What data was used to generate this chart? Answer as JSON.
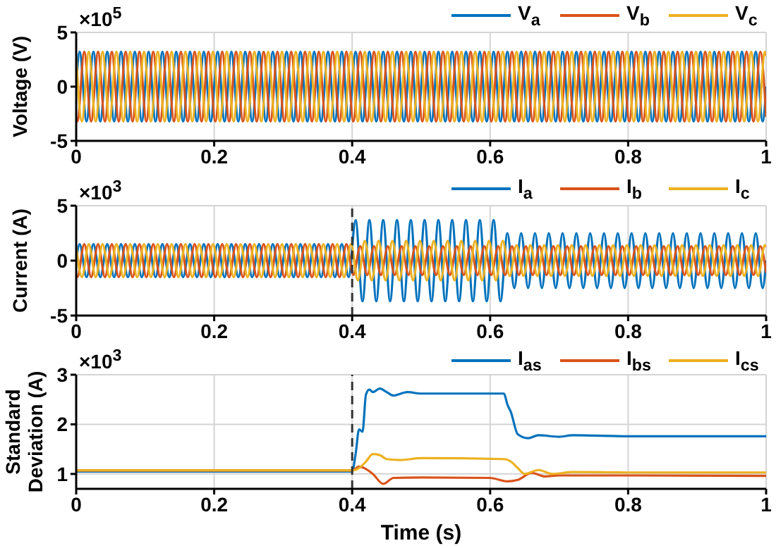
{
  "chart_data": [
    {
      "type": "line",
      "ylabel": "Voltage (V)",
      "annotations": [
        "×10$^{5}$"
      ],
      "xlim": [
        0,
        1
      ],
      "xticks": [
        0,
        0.2,
        0.4,
        0.6,
        0.8,
        1
      ],
      "ylim": [
        -5,
        5
      ],
      "yticks": [
        -5,
        0,
        5
      ],
      "grid": true,
      "legend": "top right",
      "series": [
        {
          "name": "V$_{a}$",
          "color": "#0072bd",
          "x": [
            0,
            0.005,
            0.015,
            0.025,
            0.035,
            0.045,
            0.055,
            0.065,
            0.075,
            0.085,
            0.095,
            0.105,
            0.115,
            0.125,
            0.135,
            0.145,
            0.155,
            0.165,
            0.175,
            0.185,
            0.195,
            0.205,
            0.215,
            0.225,
            0.235,
            0.245,
            0.255,
            0.265,
            0.275,
            0.285,
            0.295,
            0.305,
            0.315,
            0.325,
            0.335,
            0.345,
            0.355,
            0.365,
            0.375,
            0.385,
            0.395,
            0.405,
            0.415,
            0.425,
            0.435,
            0.445,
            0.455,
            0.465,
            0.475,
            0.485,
            0.495,
            0.505,
            0.515,
            0.525,
            0.535,
            0.545,
            0.555,
            0.565,
            0.575,
            0.585,
            0.595,
            0.605,
            0.615,
            0.625,
            0.635,
            0.645,
            0.655,
            0.665,
            0.675,
            0.685,
            0.695,
            0.705,
            0.715,
            0.725,
            0.735,
            0.745,
            0.755,
            0.765,
            0.775,
            0.785,
            0.795,
            0.805,
            0.815,
            0.825,
            0.835,
            0.845,
            0.855,
            0.865,
            0.875,
            0.885,
            0.895,
            0.905,
            0.915,
            0.925,
            0.935,
            0.945,
            0.955,
            0.965,
            0.975,
            0.985,
            0.995,
            1
          ],
          "values": [
            0,
            3.2,
            -3.2,
            3.2,
            -3.2,
            3.2,
            -3.2,
            3.2,
            -3.2,
            3.2,
            -3.2,
            3.2,
            -3.2,
            3.2,
            -3.2,
            3.2,
            -3.2,
            3.2,
            -3.2,
            3.2,
            -3.2,
            3.2,
            -3.2,
            3.2,
            -3.2,
            3.2,
            -3.2,
            3.2,
            -3.2,
            3.2,
            -3.2,
            3.2,
            -3.2,
            3.2,
            -3.2,
            3.2,
            -3.2,
            3.2,
            -3.2,
            3.2,
            -3.2,
            3.2,
            -3.2,
            3.2,
            -3.2,
            3.2,
            -3.2,
            3.2,
            -3.2,
            3.2,
            -3.2,
            3.2,
            -3.2,
            3.2,
            -3.2,
            3.2,
            -3.2,
            3.2,
            -3.2,
            3.2,
            -3.2,
            3.2,
            -3.2,
            3.2,
            -3.2,
            3.2,
            -3.2,
            3.2,
            -3.2,
            3.2,
            -3.2,
            3.2,
            -3.2,
            3.2,
            -3.2,
            3.2,
            -3.2,
            3.2,
            -3.2,
            3.2,
            -3.2,
            3.2,
            -3.2,
            3.2,
            -3.2,
            3.2,
            -3.2,
            3.2,
            -3.2,
            3.2,
            -3.2,
            3.2,
            -3.2,
            3.2,
            -3.2,
            3.2,
            -3.2,
            3.2,
            -3.2,
            3.2,
            -3.2,
            0
          ]
        },
        {
          "name": "V$_{b}$",
          "color": "#d95319",
          "x": [
            0,
            0.0017,
            0.0117,
            0.0217,
            0.0317,
            0.0417,
            0.0517,
            0.0617,
            0.0717,
            0.0817,
            0.0917,
            0.1017,
            0.1117,
            0.1217,
            0.1317,
            0.1417,
            0.1517,
            0.1617,
            0.1717,
            0.1817,
            0.1917,
            0.2017,
            0.2117,
            0.2217,
            0.2317,
            0.2417,
            0.2517,
            0.2617,
            0.2717,
            0.2817,
            0.2917,
            0.3017,
            0.3117,
            0.3217,
            0.3317,
            0.3417,
            0.3517,
            0.3617,
            0.3717,
            0.3817,
            0.3917,
            0.4017,
            0.4117,
            0.4217,
            0.4317,
            0.4417,
            0.4517,
            0.4617,
            0.4717,
            0.4817,
            0.4917,
            0.5017,
            0.5117,
            0.5217,
            0.5317,
            0.5417,
            0.5517,
            0.5617,
            0.5717,
            0.5817,
            0.5917,
            0.6017,
            0.6117,
            0.6217,
            0.6317,
            0.6417,
            0.6517,
            0.6617,
            0.6717,
            0.6817,
            0.6917,
            0.7017,
            0.7117,
            0.7217,
            0.7317,
            0.7417,
            0.7517,
            0.7617,
            0.7717,
            0.7817,
            0.7917,
            0.8017,
            0.8117,
            0.8217,
            0.8317,
            0.8417,
            0.8517,
            0.8617,
            0.8717,
            0.8817,
            0.8917,
            0.9017,
            0.9117,
            0.9217,
            0.9317,
            0.9417,
            0.9517,
            0.9617,
            0.9717,
            0.9817,
            0.9917,
            1
          ],
          "values": [
            -2.8,
            -3.2,
            3.2,
            -3.2,
            3.2,
            -3.2,
            3.2,
            -3.2,
            3.2,
            -3.2,
            3.2,
            -3.2,
            3.2,
            -3.2,
            3.2,
            -3.2,
            3.2,
            -3.2,
            3.2,
            -3.2,
            3.2,
            -3.2,
            3.2,
            -3.2,
            3.2,
            -3.2,
            3.2,
            -3.2,
            3.2,
            -3.2,
            3.2,
            -3.2,
            3.2,
            -3.2,
            3.2,
            -3.2,
            3.2,
            -3.2,
            3.2,
            -3.2,
            3.2,
            -3.2,
            3.2,
            -3.2,
            3.2,
            -3.2,
            3.2,
            -3.2,
            3.2,
            -3.2,
            3.2,
            -3.2,
            3.2,
            -3.2,
            3.2,
            -3.2,
            3.2,
            -3.2,
            3.2,
            -3.2,
            3.2,
            -3.2,
            3.2,
            -3.2,
            3.2,
            -3.2,
            3.2,
            -3.2,
            3.2,
            -3.2,
            3.2,
            -3.2,
            3.2,
            -3.2,
            3.2,
            -3.2,
            3.2,
            -3.2,
            3.2,
            -3.2,
            3.2,
            -3.2,
            3.2,
            -3.2,
            3.2,
            -3.2,
            3.2,
            -3.2,
            3.2,
            -3.2,
            3.2,
            -3.2,
            3.2,
            -3.2,
            3.2,
            -3.2,
            3.2,
            -3.2,
            3.2,
            -3.2,
            3.2,
            -2.8
          ]
        },
        {
          "name": "V$_{c}$",
          "color": "#edb120",
          "x": [
            0,
            0.0083,
            0.0183,
            0.0283,
            0.0383,
            0.0483,
            0.0583,
            0.0683,
            0.0783,
            0.0883,
            0.0983,
            0.1083,
            0.1183,
            0.1283,
            0.1383,
            0.1483,
            0.1583,
            0.1683,
            0.1783,
            0.1883,
            0.1983,
            0.2083,
            0.2183,
            0.2283,
            0.2383,
            0.2483,
            0.2583,
            0.2683,
            0.2783,
            0.2883,
            0.2983,
            0.3083,
            0.3183,
            0.3283,
            0.3383,
            0.3483,
            0.3583,
            0.3683,
            0.3783,
            0.3883,
            0.3983,
            0.4083,
            0.4183,
            0.4283,
            0.4383,
            0.4483,
            0.4583,
            0.4683,
            0.4783,
            0.4883,
            0.4983,
            0.5083,
            0.5183,
            0.5283,
            0.5383,
            0.5483,
            0.5583,
            0.5683,
            0.5783,
            0.5883,
            0.5983,
            0.6083,
            0.6183,
            0.6283,
            0.6383,
            0.6483,
            0.6583,
            0.6683,
            0.6783,
            0.6883,
            0.6983,
            0.7083,
            0.7183,
            0.7283,
            0.7383,
            0.7483,
            0.7583,
            0.7683,
            0.7783,
            0.7883,
            0.7983,
            0.8083,
            0.8183,
            0.8283,
            0.8383,
            0.8483,
            0.8583,
            0.8683,
            0.8783,
            0.8883,
            0.8983,
            0.9083,
            0.9183,
            0.9283,
            0.9383,
            0.9483,
            0.9583,
            0.9683,
            0.9783,
            0.9883,
            0.9983,
            1
          ],
          "values": [
            2.8,
            -3.2,
            3.2,
            -3.2,
            3.2,
            -3.2,
            3.2,
            -3.2,
            3.2,
            -3.2,
            3.2,
            -3.2,
            3.2,
            -3.2,
            3.2,
            -3.2,
            3.2,
            -3.2,
            3.2,
            -3.2,
            3.2,
            -3.2,
            3.2,
            -3.2,
            3.2,
            -3.2,
            3.2,
            -3.2,
            3.2,
            -3.2,
            3.2,
            -3.2,
            3.2,
            -3.2,
            3.2,
            -3.2,
            3.2,
            -3.2,
            3.2,
            -3.2,
            3.2,
            -3.2,
            3.2,
            -3.2,
            3.2,
            -3.2,
            3.2,
            -3.2,
            3.2,
            -3.2,
            3.2,
            -3.2,
            3.2,
            -3.2,
            3.2,
            -3.2,
            3.2,
            -3.2,
            3.2,
            -3.2,
            3.2,
            -3.2,
            3.2,
            -3.2,
            3.2,
            -3.2,
            3.2,
            -3.2,
            3.2,
            -3.2,
            3.2,
            -3.2,
            3.2,
            -3.2,
            3.2,
            -3.2,
            3.2,
            -3.2,
            3.2,
            -3.2,
            3.2,
            -3.2,
            3.2,
            -3.2,
            3.2,
            -3.2,
            3.2,
            -3.2,
            3.2,
            -3.2,
            3.2,
            -3.2,
            3.2,
            -3.2,
            3.2,
            -3.2,
            3.2,
            -3.2,
            3.2,
            -3.2,
            3.2,
            2.8
          ]
        }
      ]
    },
    {
      "type": "line",
      "ylabel": "Current (A)",
      "annotations": [
        "×10$^{3}$"
      ],
      "xlim": [
        0,
        1
      ],
      "xticks": [
        0,
        0.2,
        0.4,
        0.6,
        0.8,
        1
      ],
      "ylim": [
        -5,
        5
      ],
      "yticks": [
        -5,
        0,
        5
      ],
      "grid": true,
      "legend": "top right",
      "ref_lines": [
        {
          "axis": "x",
          "value": 0.4,
          "line_style": "dashed"
        }
      ],
      "series": [
        {
          "name": "I$_{a}$",
          "color": "#0072bd",
          "x": [
            0,
            0.005,
            0.015,
            0.025,
            0.035,
            0.045,
            0.055,
            0.065,
            0.075,
            0.085,
            0.095,
            0.105,
            0.115,
            0.125,
            0.135,
            0.145,
            0.155,
            0.165,
            0.175,
            0.185,
            0.195,
            0.205,
            0.215,
            0.225,
            0.235,
            0.245,
            0.255,
            0.265,
            0.275,
            0.285,
            0.295,
            0.305,
            0.315,
            0.325,
            0.335,
            0.345,
            0.355,
            0.365,
            0.375,
            0.385,
            0.395,
            0.405,
            0.415,
            0.425,
            0.435,
            0.445,
            0.455,
            0.465,
            0.475,
            0.485,
            0.495,
            0.505,
            0.515,
            0.525,
            0.535,
            0.545,
            0.555,
            0.565,
            0.575,
            0.585,
            0.595,
            0.605,
            0.615,
            0.625,
            0.635,
            0.645,
            0.655,
            0.665,
            0.675,
            0.685,
            0.695,
            0.705,
            0.715,
            0.725,
            0.735,
            0.745,
            0.755,
            0.765,
            0.775,
            0.785,
            0.795,
            0.805,
            0.815,
            0.825,
            0.835,
            0.845,
            0.855,
            0.865,
            0.875,
            0.885,
            0.895,
            0.905,
            0.915,
            0.925,
            0.935,
            0.945,
            0.955,
            0.965,
            0.975,
            0.985,
            0.995,
            1
          ],
          "values": [
            0,
            1.5,
            -1.5,
            1.5,
            -1.5,
            1.5,
            -1.5,
            1.5,
            -1.5,
            1.5,
            -1.5,
            1.5,
            -1.5,
            1.5,
            -1.5,
            1.5,
            -1.5,
            1.5,
            -1.5,
            1.5,
            -1.5,
            1.5,
            -1.5,
            1.5,
            -1.5,
            1.5,
            -1.5,
            1.5,
            -1.5,
            1.5,
            -1.5,
            1.5,
            -1.5,
            1.5,
            -1.5,
            1.5,
            -1.5,
            1.5,
            -1.5,
            1.5,
            -1.5,
            3.7,
            -3.7,
            3.7,
            -3.7,
            3.7,
            -3.7,
            3.7,
            -3.7,
            3.7,
            -3.7,
            3.7,
            -3.7,
            3.7,
            -3.7,
            3.7,
            -3.7,
            3.7,
            -3.7,
            3.7,
            -3.7,
            3.7,
            -3.7,
            2.5,
            -2.5,
            2.5,
            -2.5,
            2.5,
            -2.5,
            2.5,
            -2.5,
            2.5,
            -2.5,
            2.5,
            -2.5,
            2.5,
            -2.5,
            2.5,
            -2.5,
            2.5,
            -2.5,
            2.5,
            -2.5,
            2.5,
            -2.5,
            2.5,
            -2.5,
            2.5,
            -2.5,
            2.5,
            -2.5,
            2.5,
            -2.5,
            2.5,
            -2.5,
            2.5,
            -2.5,
            2.5,
            -2.5,
            2.5,
            -2.5,
            0
          ]
        },
        {
          "name": "I$_{b}$",
          "color": "#d95319",
          "x": [
            0,
            0.0017,
            0.0117,
            0.0217,
            0.0317,
            0.0417,
            0.0517,
            0.0617,
            0.0717,
            0.0817,
            0.0917,
            0.1017,
            0.1117,
            0.1217,
            0.1317,
            0.1417,
            0.1517,
            0.1617,
            0.1717,
            0.1817,
            0.1917,
            0.2017,
            0.2117,
            0.2217,
            0.2317,
            0.2417,
            0.2517,
            0.2617,
            0.2717,
            0.2817,
            0.2917,
            0.3017,
            0.3117,
            0.3217,
            0.3317,
            0.3417,
            0.3517,
            0.3617,
            0.3717,
            0.3817,
            0.3917,
            0.4017,
            0.4117,
            0.4217,
            0.4317,
            0.4417,
            0.4517,
            0.4617,
            0.4717,
            0.4817,
            0.4917,
            0.5017,
            0.5117,
            0.5217,
            0.5317,
            0.5417,
            0.5517,
            0.5617,
            0.5717,
            0.5817,
            0.5917,
            0.6017,
            0.6117,
            0.6217,
            0.6317,
            0.6417,
            0.6517,
            0.6617,
            0.6717,
            0.6817,
            0.6917,
            0.7017,
            0.7117,
            0.7217,
            0.7317,
            0.7417,
            0.7517,
            0.7617,
            0.7717,
            0.7817,
            0.7917,
            0.8017,
            0.8117,
            0.8217,
            0.8317,
            0.8417,
            0.8517,
            0.8617,
            0.8717,
            0.8817,
            0.8917,
            0.9017,
            0.9117,
            0.9217,
            0.9317,
            0.9417,
            0.9517,
            0.9617,
            0.9717,
            0.9817,
            0.9917,
            1
          ],
          "values": [
            -1.3,
            -1.5,
            1.5,
            -1.5,
            1.5,
            -1.5,
            1.5,
            -1.5,
            1.5,
            -1.5,
            1.5,
            -1.5,
            1.5,
            -1.5,
            1.5,
            -1.5,
            1.5,
            -1.5,
            1.5,
            -1.5,
            1.5,
            -1.5,
            1.5,
            -1.5,
            1.5,
            -1.5,
            1.5,
            -1.5,
            1.5,
            -1.5,
            1.5,
            -1.5,
            1.5,
            -1.5,
            1.5,
            -1.5,
            1.5,
            -1.5,
            1.5,
            -1.5,
            1.5,
            -1.3,
            1.3,
            -1.3,
            1.3,
            -1.3,
            1.3,
            -1.3,
            1.3,
            -1.3,
            1.3,
            -1.3,
            1.3,
            -1.3,
            1.3,
            -1.3,
            1.3,
            -1.3,
            1.3,
            -1.3,
            1.3,
            -1.3,
            1.3,
            -1.3,
            1.3,
            -1.3,
            1.3,
            -1.3,
            1.3,
            -1.3,
            1.3,
            -1.3,
            1.3,
            -1.3,
            1.3,
            -1.3,
            1.3,
            -1.3,
            1.3,
            -1.3,
            1.3,
            -1.3,
            1.3,
            -1.3,
            1.3,
            -1.3,
            1.3,
            -1.3,
            1.3,
            -1.3,
            1.3,
            -1.3,
            1.3,
            -1.3,
            1.3,
            -1.3,
            1.3,
            -1.3,
            1.3,
            -1.3,
            1.3,
            -1.1
          ]
        },
        {
          "name": "I$_{c}$",
          "color": "#edb120",
          "x": [
            0,
            0.0083,
            0.0183,
            0.0283,
            0.0383,
            0.0483,
            0.0583,
            0.0683,
            0.0783,
            0.0883,
            0.0983,
            0.1083,
            0.1183,
            0.1283,
            0.1383,
            0.1483,
            0.1583,
            0.1683,
            0.1783,
            0.1883,
            0.1983,
            0.2083,
            0.2183,
            0.2283,
            0.2383,
            0.2483,
            0.2583,
            0.2683,
            0.2783,
            0.2883,
            0.2983,
            0.3083,
            0.3183,
            0.3283,
            0.3383,
            0.3483,
            0.3583,
            0.3683,
            0.3783,
            0.3883,
            0.3983,
            0.4083,
            0.4183,
            0.4283,
            0.4383,
            0.4483,
            0.4583,
            0.4683,
            0.4783,
            0.4883,
            0.4983,
            0.5083,
            0.5183,
            0.5283,
            0.5383,
            0.5483,
            0.5583,
            0.5683,
            0.5783,
            0.5883,
            0.5983,
            0.6083,
            0.6183,
            0.6283,
            0.6383,
            0.6483,
            0.6583,
            0.6683,
            0.6783,
            0.6883,
            0.6983,
            0.7083,
            0.7183,
            0.7283,
            0.7383,
            0.7483,
            0.7583,
            0.7683,
            0.7783,
            0.7883,
            0.7983,
            0.8083,
            0.8183,
            0.8283,
            0.8383,
            0.8483,
            0.8583,
            0.8683,
            0.8783,
            0.8883,
            0.8983,
            0.9083,
            0.9183,
            0.9283,
            0.9383,
            0.9483,
            0.9583,
            0.9683,
            0.9783,
            0.9883,
            0.9983,
            1
          ],
          "values": [
            1.3,
            -1.5,
            1.5,
            -1.5,
            1.5,
            -1.5,
            1.5,
            -1.5,
            1.5,
            -1.5,
            1.5,
            -1.5,
            1.5,
            -1.5,
            1.5,
            -1.5,
            1.5,
            -1.5,
            1.5,
            -1.5,
            1.5,
            -1.5,
            1.5,
            -1.5,
            1.5,
            -1.5,
            1.5,
            -1.5,
            1.5,
            -1.5,
            1.5,
            -1.5,
            1.5,
            -1.5,
            1.5,
            -1.5,
            1.5,
            -1.5,
            1.5,
            -1.5,
            1.5,
            -1.8,
            1.8,
            -1.8,
            1.8,
            -1.8,
            1.8,
            -1.8,
            1.8,
            -1.8,
            1.8,
            -1.8,
            1.8,
            -1.8,
            1.8,
            -1.8,
            1.8,
            -1.8,
            1.8,
            -1.8,
            1.8,
            -1.8,
            1.8,
            -1.4,
            1.4,
            -1.4,
            1.4,
            -1.4,
            1.4,
            -1.4,
            1.4,
            -1.4,
            1.4,
            -1.4,
            1.4,
            -1.4,
            1.4,
            -1.4,
            1.4,
            -1.4,
            1.4,
            -1.4,
            1.4,
            -1.4,
            1.4,
            -1.4,
            1.4,
            -1.4,
            1.4,
            -1.4,
            1.4,
            -1.4,
            1.4,
            -1.4,
            1.4,
            -1.4,
            1.4,
            -1.4,
            1.4,
            -1.4,
            1.4,
            1.2
          ]
        }
      ]
    },
    {
      "type": "line",
      "xlabel": "Time (s)",
      "ylabel": "Standard Deviation (A)",
      "annotations": [
        "×10$^{3}$"
      ],
      "xlim": [
        0,
        1
      ],
      "xticks": [
        0,
        0.2,
        0.4,
        0.6,
        0.8,
        1
      ],
      "ylim": [
        0.7,
        3
      ],
      "yticks": [
        1,
        2,
        3
      ],
      "grid": true,
      "legend": "top right",
      "ref_lines": [
        {
          "axis": "x",
          "value": 0.4,
          "line_style": "dashed"
        }
      ],
      "series": [
        {
          "name": "I$_{as}$",
          "color": "#0072bd",
          "x": [
            0,
            0.4,
            0.405,
            0.41,
            0.415,
            0.42,
            0.425,
            0.43,
            0.44,
            0.45,
            0.46,
            0.48,
            0.5,
            0.55,
            0.62,
            0.625,
            0.63,
            0.64,
            0.655,
            0.67,
            0.7,
            0.72,
            0.8,
            1
          ],
          "values": [
            1.05,
            1.05,
            1.4,
            1.9,
            1.85,
            2.6,
            2.7,
            2.65,
            2.72,
            2.65,
            2.58,
            2.65,
            2.62,
            2.62,
            2.62,
            2.4,
            2.25,
            1.8,
            1.72,
            1.78,
            1.75,
            1.78,
            1.76,
            1.76
          ]
        },
        {
          "name": "I$_{bs}$",
          "color": "#d95319",
          "x": [
            0,
            0.4,
            0.41,
            0.42,
            0.43,
            0.445,
            0.46,
            0.5,
            0.6,
            0.625,
            0.64,
            0.66,
            0.68,
            0.7,
            0.8,
            1
          ],
          "values": [
            1.07,
            1.07,
            1.15,
            1.1,
            1.0,
            0.8,
            0.92,
            0.93,
            0.92,
            0.85,
            0.88,
            1.02,
            0.95,
            0.97,
            0.97,
            0.96
          ]
        },
        {
          "name": "I$_{cs}$",
          "color": "#edb120",
          "x": [
            0,
            0.4,
            0.41,
            0.42,
            0.43,
            0.44,
            0.45,
            0.47,
            0.5,
            0.62,
            0.63,
            0.64,
            0.65,
            0.67,
            0.69,
            0.72,
            0.8,
            1
          ],
          "values": [
            1.07,
            1.07,
            1.12,
            1.25,
            1.4,
            1.38,
            1.3,
            1.28,
            1.32,
            1.3,
            1.25,
            1.12,
            1.0,
            1.08,
            1.0,
            1.04,
            1.03,
            1.03
          ]
        }
      ]
    }
  ]
}
